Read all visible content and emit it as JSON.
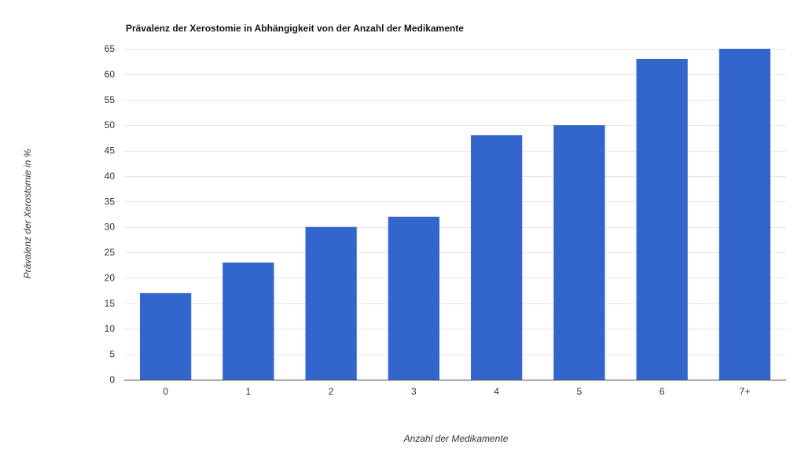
{
  "chart_data": {
    "type": "bar",
    "title": "Prävalenz der Xerostomie in Abhängigkeit von der Anzahl der Medikamente",
    "xlabel": "Anzahl der Medikamente",
    "ylabel": "Prävalenz der Xerostomie in %",
    "categories": [
      "0",
      "1",
      "2",
      "3",
      "4",
      "5",
      "6",
      "7+"
    ],
    "values": [
      17,
      23,
      30,
      32,
      48,
      50,
      63,
      65
    ],
    "ylim": [
      0,
      65
    ],
    "yticks": [
      0,
      5,
      10,
      15,
      20,
      25,
      30,
      35,
      40,
      45,
      50,
      55,
      60,
      65
    ],
    "grid": true,
    "legend": "none",
    "bar_color": "#3366cc"
  }
}
